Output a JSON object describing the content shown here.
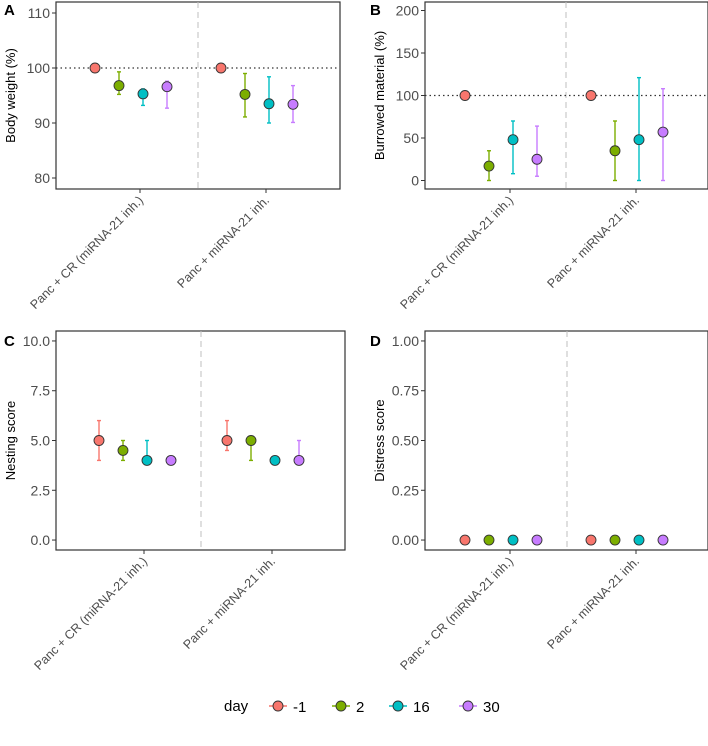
{
  "chart_data": [
    {
      "panel": "A",
      "type": "scatter",
      "title": "",
      "xlabel": "",
      "ylabel": "Body weight (%)",
      "ylim": [
        78,
        112
      ],
      "yticks": [
        80,
        90,
        100,
        110
      ],
      "ytick_labels": [
        "80",
        "90",
        "100",
        "110"
      ],
      "reference_line": 100,
      "categories": [
        "Panc + CR (miRNA-21 inh.)",
        "Panc + miRNA-21 inh."
      ],
      "series": [
        {
          "name": "-1",
          "values": [
            100,
            100
          ],
          "err_low": [
            100,
            100
          ],
          "err_high": [
            100,
            100
          ]
        },
        {
          "name": "2",
          "values": [
            96.8,
            95.2
          ],
          "err_low": [
            95.2,
            91.1
          ],
          "err_high": [
            99.3,
            99.0
          ]
        },
        {
          "name": "16",
          "values": [
            95.3,
            93.5
          ],
          "err_low": [
            93.2,
            90.0
          ],
          "err_high": [
            96.2,
            98.4
          ]
        },
        {
          "name": "30",
          "values": [
            96.6,
            93.4
          ],
          "err_low": [
            92.7,
            90.1
          ],
          "err_high": [
            97.6,
            96.8
          ]
        }
      ]
    },
    {
      "panel": "B",
      "type": "scatter",
      "title": "",
      "xlabel": "",
      "ylabel": "Burrowed material (%)",
      "ylim": [
        -10,
        210
      ],
      "yticks": [
        0,
        50,
        100,
        150,
        200
      ],
      "ytick_labels": [
        "0",
        "50",
        "100",
        "150",
        "200"
      ],
      "reference_line": 100,
      "categories": [
        "Panc + CR (miRNA-21 inh.)",
        "Panc + miRNA-21 inh."
      ],
      "series": [
        {
          "name": "-1",
          "values": [
            100,
            100
          ],
          "err_low": [
            100,
            100
          ],
          "err_high": [
            100,
            100
          ]
        },
        {
          "name": "2",
          "values": [
            17,
            35
          ],
          "err_low": [
            0,
            0
          ],
          "err_high": [
            35,
            70
          ]
        },
        {
          "name": "16",
          "values": [
            48,
            48
          ],
          "err_low": [
            8,
            0
          ],
          "err_high": [
            70,
            121
          ]
        },
        {
          "name": "30",
          "values": [
            25,
            57
          ],
          "err_low": [
            5,
            0
          ],
          "err_high": [
            64,
            108
          ]
        }
      ]
    },
    {
      "panel": "C",
      "type": "scatter",
      "title": "",
      "xlabel": "",
      "ylabel": "Nesting score",
      "ylim": [
        -0.5,
        10.5
      ],
      "yticks": [
        0,
        2.5,
        5,
        7.5,
        10
      ],
      "ytick_labels": [
        "0.0",
        "2.5",
        "5.0",
        "7.5",
        "10.0"
      ],
      "categories": [
        "Panc + CR (miRNA-21 inh.)",
        "Panc + miRNA-21 inh."
      ],
      "series": [
        {
          "name": "-1",
          "values": [
            5,
            5
          ],
          "err_low": [
            4,
            4.5
          ],
          "err_high": [
            6,
            6
          ]
        },
        {
          "name": "2",
          "values": [
            4.5,
            5
          ],
          "err_low": [
            4,
            4
          ],
          "err_high": [
            5,
            5
          ]
        },
        {
          "name": "16",
          "values": [
            4,
            4
          ],
          "err_low": [
            4,
            4
          ],
          "err_high": [
            5,
            4
          ]
        },
        {
          "name": "30",
          "values": [
            4,
            4
          ],
          "err_low": [
            4,
            4
          ],
          "err_high": [
            4,
            5
          ]
        }
      ]
    },
    {
      "panel": "D",
      "type": "scatter",
      "title": "",
      "xlabel": "",
      "ylabel": "Distress score",
      "ylim": [
        -0.05,
        1.05
      ],
      "yticks": [
        0,
        0.25,
        0.5,
        0.75,
        1
      ],
      "ytick_labels": [
        "0.00",
        "0.25",
        "0.50",
        "0.75",
        "1.00"
      ],
      "categories": [
        "Panc + CR (miRNA-21 inh.)",
        "Panc + miRNA-21 inh."
      ],
      "series": [
        {
          "name": "-1",
          "values": [
            0,
            0
          ],
          "err_low": [
            0,
            0
          ],
          "err_high": [
            0,
            0
          ]
        },
        {
          "name": "2",
          "values": [
            0,
            0
          ],
          "err_low": [
            0,
            0
          ],
          "err_high": [
            0,
            0
          ]
        },
        {
          "name": "16",
          "values": [
            0,
            0
          ],
          "err_low": [
            0,
            0
          ],
          "err_high": [
            0,
            0
          ]
        },
        {
          "name": "30",
          "values": [
            0,
            0
          ],
          "err_low": [
            0,
            0
          ],
          "err_high": [
            0,
            0
          ]
        }
      ]
    }
  ],
  "legend": {
    "title": "day",
    "position": "bottom",
    "entries": [
      "-1",
      "2",
      "16",
      "30"
    ]
  },
  "colors": {
    "-1": "#F8766D",
    "2": "#7CAE00",
    "16": "#00BFC4",
    "30": "#C77CFF"
  }
}
